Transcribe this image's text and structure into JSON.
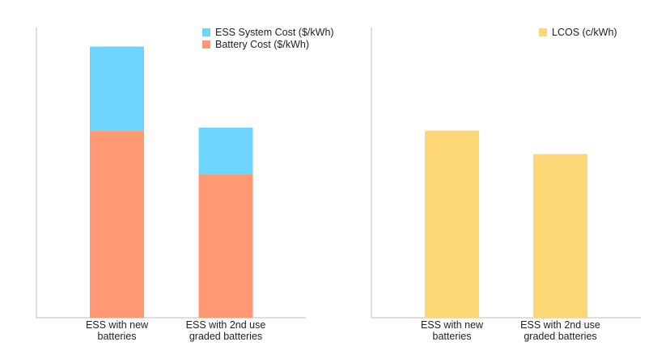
{
  "chart_data": [
    {
      "type": "bar",
      "stacked": true,
      "categories": [
        "ESS with new batteries",
        "ESS with 2nd use graded batteries"
      ],
      "category_lines": [
        [
          "ESS with new",
          "batteries"
        ],
        [
          "ESS with 2nd use",
          "graded batteries"
        ]
      ],
      "series": [
        {
          "name": "Battery Cost ($/kWh)",
          "values": [
            60,
            46
          ],
          "color": "#FF9973"
        },
        {
          "name": "ESS System Cost ($/kWh)",
          "values": [
            27,
            15
          ],
          "color": "#6DD5FD"
        }
      ],
      "legend_order": [
        "ESS System Cost ($/kWh)",
        "Battery Cost ($/kWh)"
      ],
      "ylim": [
        0,
        90
      ],
      "grid": false,
      "axis_ticks": false,
      "legend": "top-right"
    },
    {
      "type": "bar",
      "categories": [
        "ESS with new batteries",
        "ESS with 2nd use graded batteries"
      ],
      "category_lines": [
        [
          "ESS with new",
          "batteries"
        ],
        [
          "ESS with 2nd use",
          "graded batteries"
        ]
      ],
      "series": [
        {
          "name": "LCOS (c/kWh)",
          "values": [
            60,
            52.5
          ],
          "color": "#FDD776"
        }
      ],
      "legend_order": [
        "LCOS (c/kWh)"
      ],
      "ylim": [
        0,
        90
      ],
      "grid": false,
      "axis_ticks": false,
      "legend": "top-right"
    }
  ]
}
